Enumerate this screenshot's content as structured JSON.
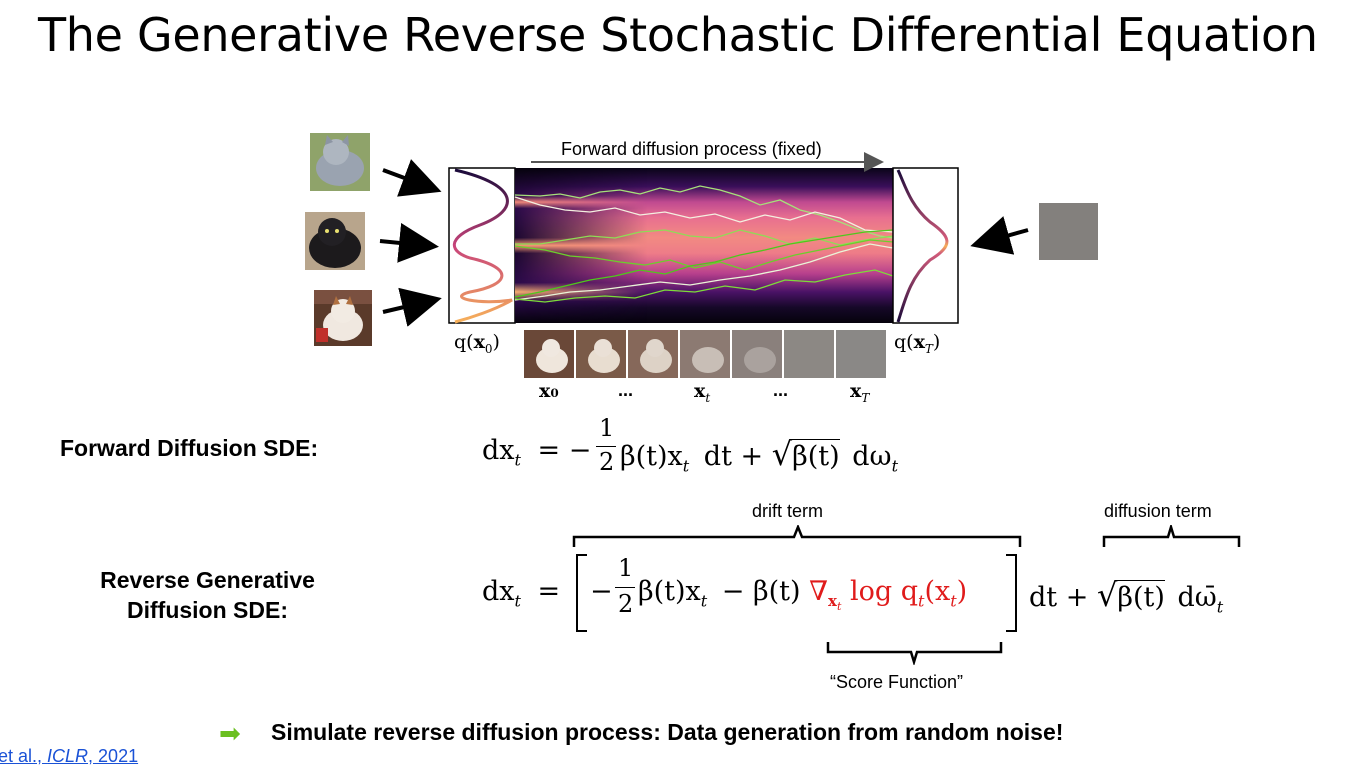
{
  "title": "The Generative Reverse Stochastic Differential Equation",
  "figure": {
    "forward_label": "Forward diffusion process (fixed)",
    "q_x0": "q(x₀)",
    "q_xT": "q(xₜ)",
    "seq_labels": [
      "x₀",
      "...",
      "xₜ",
      "...",
      "xₜ"
    ],
    "seq_labels_display": {
      "x0": "x₀",
      "dots1": "...",
      "xt": "x",
      "xt_sub": "t",
      "dots2": "...",
      "xT": "x",
      "xT_sub": "T"
    },
    "q_x0_display": {
      "pre": "q(",
      "x": "x",
      "sub": "0",
      "post": ")"
    },
    "q_xT_display": {
      "pre": "q(",
      "x": "x",
      "sub": "T",
      "post": ")"
    }
  },
  "forward_sde": {
    "label": "Forward Diffusion SDE:",
    "lhs": "dx",
    "lhs_sub": "t",
    "eq": "= −",
    "frac_num": "1",
    "frac_den": "2",
    "term1": "β(t)x",
    "term1_sub": "t",
    "dt": "dt +",
    "sqrt_body": "β(t)",
    "dw": "dω",
    "dw_sub": "t"
  },
  "reverse_sde": {
    "label_line1": "Reverse Generative",
    "label_line2": "Diffusion SDE:",
    "lhs": "dx",
    "lhs_sub": "t",
    "eq": "=",
    "minus": "−",
    "frac_num": "1",
    "frac_den": "2",
    "term1": "β(t)x",
    "term1_sub": "t",
    "term2": "− β(t)",
    "nabla": "∇",
    "nabla_sub": "x",
    "nabla_sub_sub": "t",
    "log": "log q",
    "log_sub": "t",
    "log_arg": "(x",
    "log_arg_sub": "t",
    "log_close": ")",
    "dt": "dt +",
    "sqrt_body": "β(t)",
    "dw": "dω̄",
    "dw_sub": "t",
    "drift_label": "drift term",
    "diffusion_label": "diffusion term",
    "score_label": "“Score Function”"
  },
  "conclusion": {
    "arrow": "➡",
    "text": "Simulate reverse diffusion process: Data generation from random noise!"
  },
  "citation": {
    "prefix": "et al., ",
    "venue": "ICLR",
    "year": ", 2021"
  },
  "colors": {
    "accent_green": "#6bbf20",
    "score_red": "#e01b1b",
    "link_blue": "#1a52d6"
  }
}
